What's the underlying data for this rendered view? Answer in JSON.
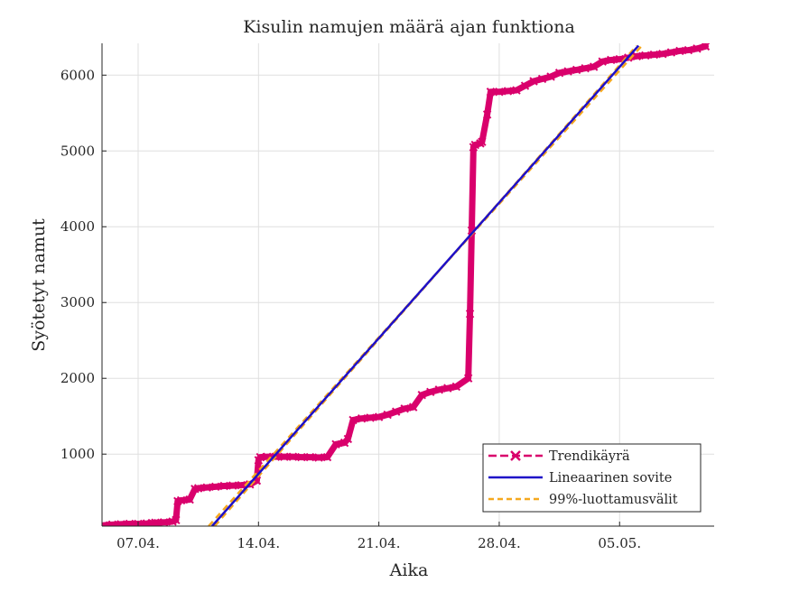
{
  "chart_data": {
    "type": "line",
    "title": "Kisulin namujen määrä ajan funktiona",
    "xlabel": "Aika",
    "ylabel": "Syötetyt namut",
    "x_ticks": [
      "07.04.",
      "14.04.",
      "21.04.",
      "28.04.",
      "05.05."
    ],
    "x_tick_values": [
      7,
      14,
      21,
      28,
      35
    ],
    "y_ticks": [
      "1000",
      "2000",
      "3000",
      "4000",
      "5000",
      "6000"
    ],
    "y_tick_values": [
      1000,
      2000,
      3000,
      4000,
      5000,
      6000
    ],
    "xlim": [
      4.9,
      40.5
    ],
    "ylim": [
      50,
      6420
    ],
    "grid": true,
    "legend_position": "bottom-right",
    "colors": {
      "trend": "#D9006C",
      "fit": "#1E10C8",
      "confidence": "#F5A81E",
      "axis": "#262626",
      "grid": "#DFDFDF"
    },
    "series": [
      {
        "name": "Trendikäyrä",
        "style": "dashed-x-markers",
        "x": [
          5.0,
          5.5,
          6.0,
          6.5,
          7.0,
          7.5,
          7.8,
          8.0,
          8.5,
          9.0,
          9.2,
          9.3,
          9.5,
          10.0,
          10.3,
          10.5,
          11.0,
          11.5,
          12.0,
          12.5,
          13.0,
          13.5,
          13.9,
          14.0,
          14.1,
          14.5,
          15.0,
          15.5,
          16.0,
          16.5,
          17.0,
          17.5,
          18.0,
          18.5,
          19.0,
          19.2,
          19.5,
          20.0,
          20.5,
          21.0,
          21.5,
          22.0,
          22.5,
          23.0,
          23.5,
          24.0,
          24.5,
          25.0,
          25.5,
          26.2,
          26.3,
          26.4,
          26.5,
          26.6,
          26.9,
          27.0,
          27.3,
          27.5,
          28.0,
          28.5,
          29.0,
          29.5,
          30.0,
          30.5,
          31.0,
          31.5,
          32.0,
          32.5,
          33.0,
          33.5,
          34.0,
          34.5,
          35.0,
          35.5,
          36.0,
          36.5,
          37.0,
          37.5,
          38.0,
          38.5,
          39.0,
          39.5,
          40.0
        ],
        "y": [
          60,
          70,
          75,
          80,
          80,
          85,
          90,
          95,
          100,
          110,
          130,
          380,
          390,
          400,
          540,
          550,
          560,
          570,
          580,
          585,
          590,
          600,
          650,
          920,
          960,
          965,
          965,
          965,
          965,
          960,
          960,
          955,
          960,
          1130,
          1150,
          1200,
          1450,
          1470,
          1480,
          1490,
          1520,
          1560,
          1600,
          1620,
          1780,
          1820,
          1850,
          1870,
          1890,
          2000,
          2850,
          3950,
          5050,
          5080,
          5100,
          5120,
          5480,
          5780,
          5780,
          5790,
          5800,
          5860,
          5920,
          5950,
          5980,
          6030,
          6050,
          6070,
          6090,
          6110,
          6180,
          6200,
          6210,
          6230,
          6250,
          6260,
          6270,
          6280,
          6300,
          6320,
          6330,
          6350,
          6380
        ]
      },
      {
        "name": "Lineaarinen sovite",
        "style": "solid",
        "x": [
          11.3,
          36.1
        ],
        "y": [
          50,
          6390
        ]
      },
      {
        "name": "99%-luottamusvälit",
        "style": "dashed",
        "x": [
          11.1,
          36.3
        ],
        "y": [
          50,
          6390
        ]
      },
      {
        "name": "99%-luottamusvälit",
        "style": "dashed",
        "x": [
          11.45,
          36.0
        ],
        "y": [
          50,
          6390
        ]
      }
    ],
    "legend": [
      "Trendikäyrä",
      "Lineaarinen sovite",
      "99%-luottamusvälit"
    ]
  }
}
